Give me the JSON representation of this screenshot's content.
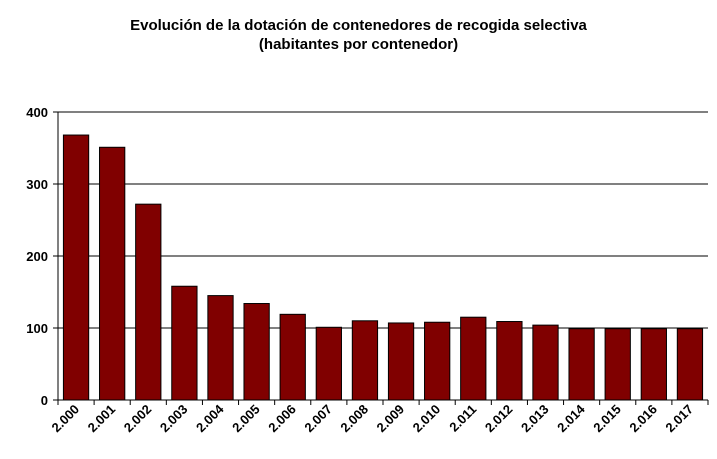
{
  "chart_data": {
    "type": "bar",
    "title": "Evolución de la dotación de contenedores de recogida selectiva",
    "subtitle": "(habitantes por contenedor)",
    "xlabel": "",
    "ylabel": "",
    "categories": [
      "2.000",
      "2.001",
      "2.002",
      "2.003",
      "2.004",
      "2.005",
      "2.006",
      "2.007",
      "2.008",
      "2.009",
      "2.010",
      "2.011",
      "2.012",
      "2.013",
      "2.014",
      "2.015",
      "2.016",
      "2.017"
    ],
    "values": [
      368,
      351,
      272,
      158,
      145,
      134,
      119,
      101,
      110,
      107,
      108,
      115,
      109,
      104,
      99,
      99,
      99,
      99
    ],
    "ylim": [
      0,
      400
    ],
    "yticks": [
      "0",
      "100",
      "200",
      "300",
      "400"
    ],
    "grid": true,
    "legend": "none",
    "bar_color": "#800000"
  }
}
